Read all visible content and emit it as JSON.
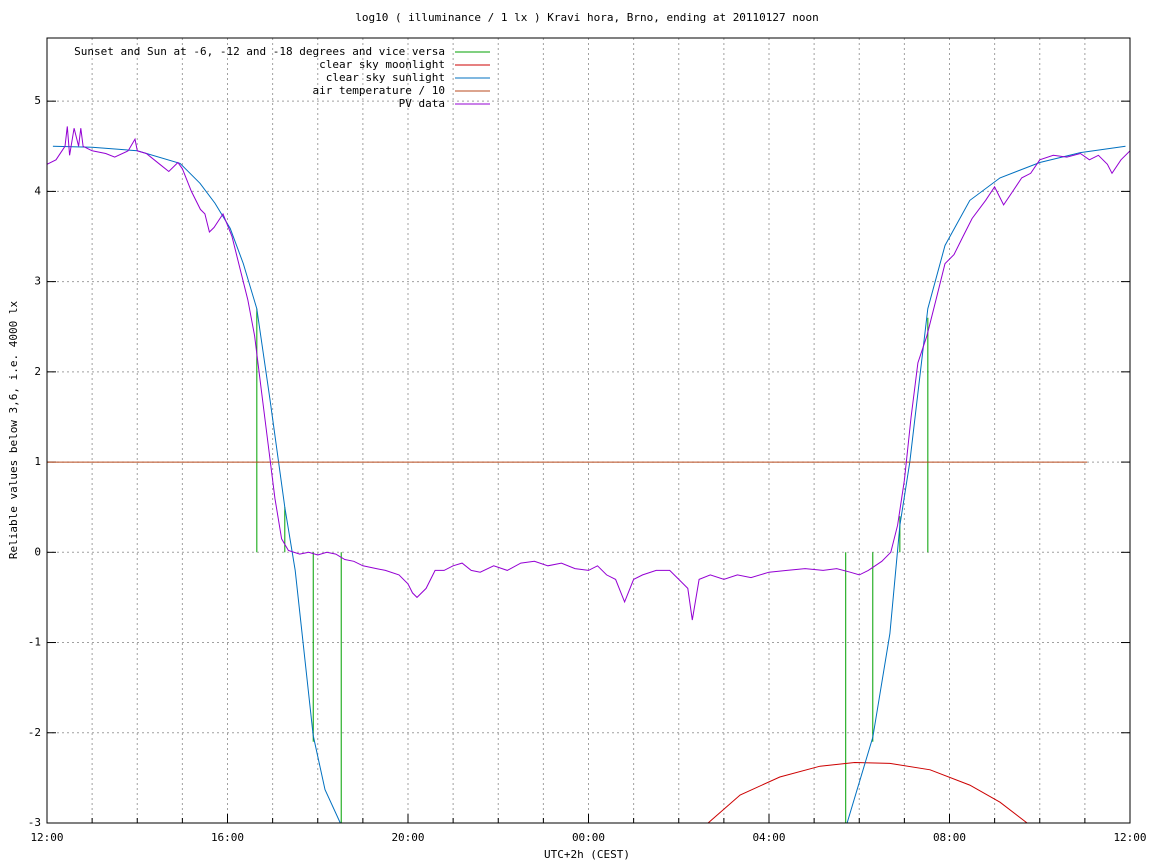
{
  "chart_data": {
    "type": "line",
    "title": "log10 ( illuminance / 1 lx ) Kravi hora, Brno, ending at 20110127 noon",
    "x_label": "UTC+2h (CEST)",
    "y_label": "Reliable values below 3,6, i.e. 4000 lx",
    "xlim": [
      0,
      24
    ],
    "ylim": [
      -3,
      5.7
    ],
    "xticks": [
      {
        "value": 0,
        "label": "12:00"
      },
      {
        "value": 4,
        "label": "16:00"
      },
      {
        "value": 8,
        "label": "20:00"
      },
      {
        "value": 12,
        "label": "00:00"
      },
      {
        "value": 16,
        "label": "04:00"
      },
      {
        "value": 20,
        "label": "08:00"
      },
      {
        "value": 24,
        "label": "12:00"
      }
    ],
    "xminor": [
      1,
      2,
      3,
      5,
      6,
      7,
      9,
      10,
      11,
      13,
      14,
      15,
      17,
      18,
      19,
      21,
      22,
      23
    ],
    "yticks": [
      -3,
      -2,
      -1,
      0,
      1,
      2,
      3,
      4,
      5
    ],
    "grid": true,
    "legend": "top-left",
    "series": [
      {
        "name": "Sunset and Sun at -6, -12 and -18 degrees and vice versa",
        "color": "#00a000",
        "style": "impulses",
        "x": [
          4.65,
          5.27,
          5.9,
          6.52,
          17.7,
          18.3,
          18.9,
          19.52
        ],
        "values": [
          2.7,
          0.5,
          -2.1,
          -3,
          -3,
          -2.1,
          0.4,
          2.6
        ]
      },
      {
        "name": "clear sky moonlight",
        "color": "#cc0000",
        "style": "lines",
        "x": [
          14.65,
          15.36,
          16.24,
          17.13,
          17.9,
          18.68,
          19.57,
          20.45,
          21.12,
          21.72
        ],
        "values": [
          -3,
          -2.69,
          -2.49,
          -2.37,
          -2.33,
          -2.34,
          -2.41,
          -2.58,
          -2.77,
          -3
        ]
      },
      {
        "name": "clear sky sunlight",
        "color": "#0070c0",
        "style": "lines",
        "x": [
          0.13,
          1,
          2,
          2.95,
          3.39,
          3.72,
          4.06,
          4.35,
          4.65,
          4.94,
          5.27,
          5.5,
          5.9,
          6.16,
          6.5,
          17.73,
          18.3,
          18.68,
          18.9,
          19.12,
          19.52,
          19.9,
          20.45,
          21.12,
          22,
          22.9,
          23.9
        ],
        "values": [
          4.5,
          4.49,
          4.45,
          4.31,
          4.09,
          3.87,
          3.59,
          3.2,
          2.7,
          1.7,
          0.5,
          -0.2,
          -2.03,
          -2.63,
          -3,
          -3,
          -2.05,
          -0.9,
          0.3,
          1.0,
          2.7,
          3.4,
          3.9,
          4.15,
          4.32,
          4.43,
          4.5
        ]
      },
      {
        "name": "air temperature / 10",
        "color": "#b84a1c",
        "style": "lines",
        "x": [
          0,
          23.05
        ],
        "values": [
          1,
          1
        ]
      },
      {
        "name": "PV data",
        "color": "#9400d3",
        "style": "lines",
        "x": [
          0,
          0.2,
          0.4,
          0.45,
          0.5,
          0.6,
          0.7,
          0.75,
          0.8,
          1.0,
          1.3,
          1.5,
          1.8,
          1.95,
          2.0,
          2.2,
          2.5,
          2.7,
          2.9,
          3.0,
          3.2,
          3.4,
          3.5,
          3.6,
          3.7,
          3.9,
          4.1,
          4.3,
          4.45,
          4.6,
          4.75,
          4.9,
          5.05,
          5.2,
          5.35,
          5.6,
          5.8,
          6.0,
          6.2,
          6.4,
          6.6,
          6.8,
          7.0,
          7.3,
          7.5,
          7.8,
          8.0,
          8.1,
          8.2,
          8.4,
          8.6,
          8.8,
          9.0,
          9.2,
          9.4,
          9.6,
          9.9,
          10.2,
          10.5,
          10.8,
          11.1,
          11.4,
          11.7,
          12.0,
          12.2,
          12.4,
          12.6,
          12.8,
          13.0,
          13.2,
          13.5,
          13.8,
          14.0,
          14.2,
          14.3,
          14.45,
          14.7,
          15.0,
          15.3,
          15.6,
          16.0,
          16.4,
          16.8,
          17.2,
          17.5,
          17.8,
          18.0,
          18.2,
          18.5,
          18.7,
          18.85,
          19.0,
          19.15,
          19.3,
          19.5,
          19.7,
          19.9,
          20.1,
          20.3,
          20.5,
          20.8,
          21.0,
          21.2,
          21.4,
          21.6,
          21.8,
          22.0,
          22.3,
          22.6,
          22.9,
          23.1,
          23.3,
          23.5,
          23.6,
          23.8,
          24.0
        ],
        "values": [
          4.3,
          4.35,
          4.5,
          4.72,
          4.4,
          4.7,
          4.5,
          4.7,
          4.5,
          4.45,
          4.42,
          4.38,
          4.45,
          4.58,
          4.45,
          4.42,
          4.3,
          4.22,
          4.32,
          4.25,
          4.0,
          3.8,
          3.75,
          3.55,
          3.6,
          3.75,
          3.5,
          3.1,
          2.8,
          2.4,
          1.8,
          1.2,
          0.6,
          0.15,
          0.02,
          -0.02,
          0.0,
          -0.03,
          0.0,
          -0.02,
          -0.08,
          -0.1,
          -0.15,
          -0.18,
          -0.2,
          -0.25,
          -0.35,
          -0.45,
          -0.5,
          -0.4,
          -0.2,
          -0.2,
          -0.15,
          -0.12,
          -0.2,
          -0.22,
          -0.15,
          -0.2,
          -0.12,
          -0.1,
          -0.15,
          -0.12,
          -0.18,
          -0.2,
          -0.15,
          -0.25,
          -0.3,
          -0.55,
          -0.3,
          -0.25,
          -0.2,
          -0.2,
          -0.3,
          -0.4,
          -0.75,
          -0.3,
          -0.25,
          -0.3,
          -0.25,
          -0.28,
          -0.22,
          -0.2,
          -0.18,
          -0.2,
          -0.18,
          -0.22,
          -0.25,
          -0.2,
          -0.1,
          0.0,
          0.3,
          0.8,
          1.5,
          2.1,
          2.4,
          2.8,
          3.2,
          3.3,
          3.5,
          3.7,
          3.9,
          4.05,
          3.85,
          4.0,
          4.15,
          4.2,
          4.35,
          4.4,
          4.38,
          4.42,
          4.35,
          4.4,
          4.3,
          4.2,
          4.35,
          4.45
        ]
      }
    ]
  }
}
